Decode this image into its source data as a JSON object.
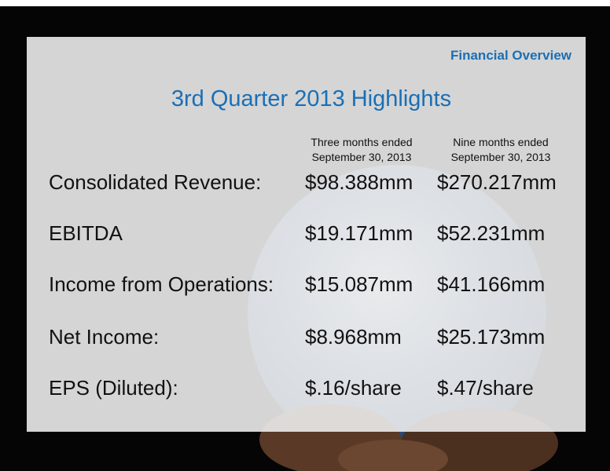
{
  "section": "Financial Overview",
  "title": "3rd Quarter 2013 Highlights",
  "columns": [
    {
      "line1": "Three months ended",
      "line2": "September 30, 2013"
    },
    {
      "line1": "Nine months ended",
      "line2": "September 30, 2013"
    }
  ],
  "rows": [
    {
      "label": "Consolidated Revenue:",
      "values": [
        "$98.388mm",
        "$270.217mm"
      ]
    },
    {
      "label": "EBITDA",
      "values": [
        "$19.171mm",
        "$52.231mm"
      ]
    },
    {
      "label": "Income from Operations:",
      "values": [
        "$15.087mm",
        "$41.166mm"
      ]
    },
    {
      "label": "Net Income:",
      "values": [
        "$8.968mm",
        "$25.173mm"
      ]
    },
    {
      "label": "EPS (Diluted):",
      "values": [
        "$.16/share",
        "$.47/share"
      ]
    }
  ]
}
